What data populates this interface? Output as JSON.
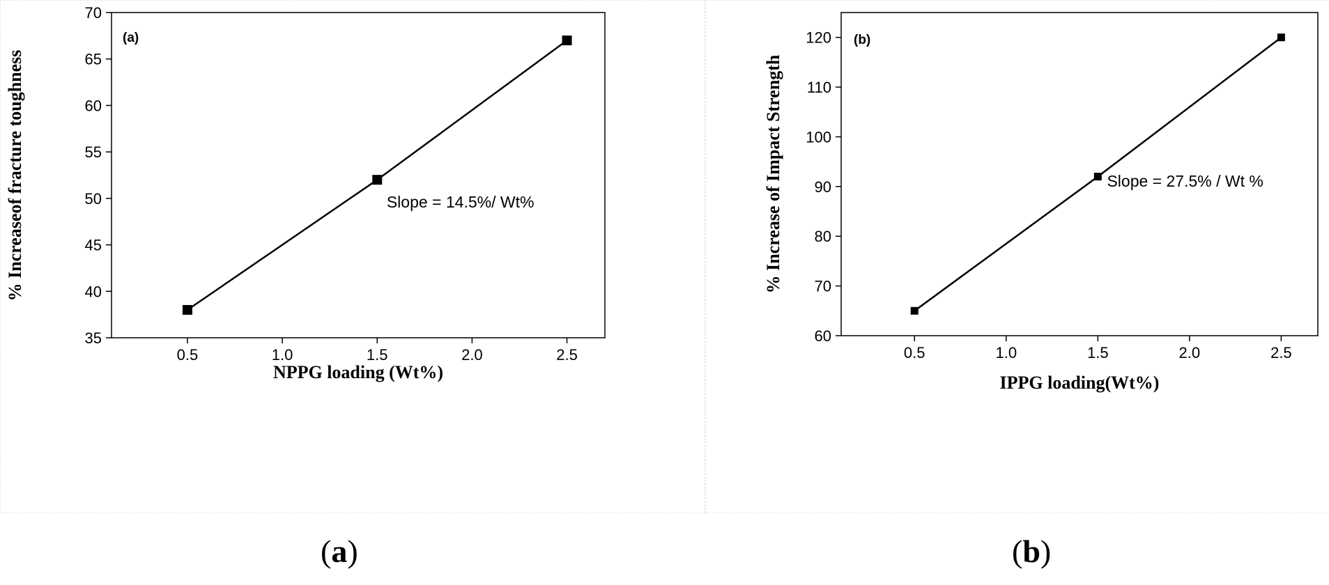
{
  "chart_data": [
    {
      "type": "line",
      "panel_tag": "(a)",
      "caption": "a",
      "x": [
        0.5,
        1.5,
        2.5
      ],
      "y": [
        38,
        52,
        67
      ],
      "xlabel": "NPPG loading (Wt%)",
      "ylabel": "% Increaseof fracture toughness",
      "xlim": [
        0.1,
        2.7
      ],
      "ylim": [
        35,
        70
      ],
      "xticks": [
        0.5,
        1.0,
        1.5,
        2.0,
        2.5
      ],
      "xtick_labels": [
        "0.5",
        "1.0",
        "1.5",
        "2.0",
        "2.5"
      ],
      "yticks": [
        35,
        40,
        45,
        50,
        55,
        60,
        65,
        70
      ],
      "ytick_labels": [
        "35",
        "40",
        "45",
        "50",
        "55",
        "60",
        "65",
        "70"
      ],
      "annotation": "Slope = 14.5%/ Wt%",
      "annotation_at": [
        1.55,
        49
      ],
      "marker": "square",
      "grid": false
    },
    {
      "type": "line",
      "panel_tag": "(b)",
      "caption": "b",
      "x": [
        0.5,
        1.5,
        2.5
      ],
      "y": [
        65,
        92,
        120
      ],
      "xlabel": "IPPG loading(Wt%)",
      "ylabel": "% Increase of Impact Strength",
      "xlim": [
        0.1,
        2.7
      ],
      "ylim": [
        60,
        125
      ],
      "xticks": [
        0.5,
        1.0,
        1.5,
        2.0,
        2.5
      ],
      "xtick_labels": [
        "0.5",
        "1.0",
        "1.5",
        "2.0",
        "2.5"
      ],
      "yticks": [
        60,
        70,
        80,
        90,
        100,
        110,
        120
      ],
      "ytick_labels": [
        "60",
        "70",
        "80",
        "90",
        "100",
        "110",
        "120"
      ],
      "annotation": "Slope = 27.5% / Wt %",
      "annotation_at": [
        1.55,
        90
      ],
      "marker": "square",
      "grid": false
    }
  ],
  "colors": {
    "line": "#000000",
    "marker": "#000000",
    "axes": "#000000",
    "background": "#ffffff"
  }
}
